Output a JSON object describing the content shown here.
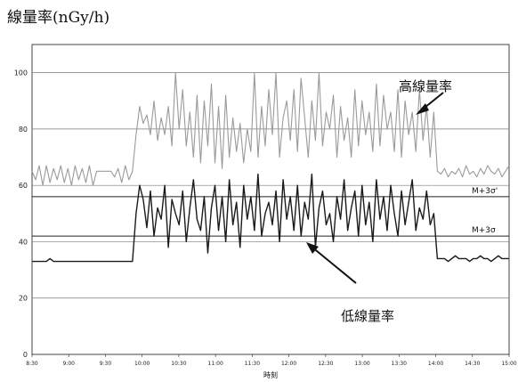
{
  "chart_data": {
    "type": "line",
    "title": "線量率(nGy/h)",
    "xlabel": "時刻",
    "ylabel": "",
    "ylim": [
      0,
      110
    ],
    "yticks": [
      0,
      20,
      40,
      60,
      80,
      100
    ],
    "grid": true,
    "x_tick_labels": [
      "8:30",
      "9:00",
      "9:30",
      "10:00",
      "10:30",
      "11:00",
      "11:30",
      "12:00",
      "12:30",
      "13:00",
      "13:30",
      "14:00",
      "14:30",
      "15:00"
    ],
    "series": [
      {
        "color": "#9a9a9a",
        "values": [
          65,
          62,
          67,
          60,
          67,
          61,
          66,
          62,
          67,
          61,
          66,
          60,
          67,
          62,
          66,
          61,
          67,
          60,
          65,
          65,
          65,
          65,
          65,
          63,
          66,
          61,
          67,
          62,
          65,
          78,
          88,
          82,
          85,
          78,
          90,
          76,
          84,
          78,
          88,
          74,
          100,
          80,
          94,
          74,
          86,
          70,
          92,
          68,
          90,
          74,
          96,
          68,
          88,
          66,
          92,
          70,
          84,
          72,
          82,
          68,
          80,
          72,
          100,
          70,
          88,
          74,
          94,
          78,
          100,
          70,
          84,
          90,
          76,
          94,
          72,
          98,
          84,
          70,
          90,
          76,
          100,
          74,
          86,
          80,
          92,
          70,
          88,
          76,
          84,
          70,
          94,
          74,
          90,
          78,
          86,
          72,
          96,
          74,
          92,
          80,
          86,
          72,
          94,
          70,
          90,
          78,
          86,
          72,
          94,
          76,
          88,
          70,
          86,
          65,
          64,
          66,
          63,
          65,
          64,
          66,
          63,
          67,
          64,
          65,
          63,
          66,
          64,
          67,
          65,
          64,
          66,
          63,
          65,
          67
        ]
      },
      {
        "color": "#1a1a1a",
        "values": [
          33,
          33,
          33,
          33,
          33,
          34,
          33,
          33,
          33,
          33,
          33,
          33,
          33,
          33,
          33,
          33,
          33,
          33,
          33,
          33,
          33,
          33,
          33,
          33,
          33,
          33,
          33,
          33,
          33,
          50,
          60,
          55,
          45,
          58,
          42,
          52,
          48,
          60,
          38,
          55,
          50,
          46,
          58,
          40,
          52,
          62,
          48,
          44,
          56,
          36,
          52,
          60,
          44,
          56,
          40,
          62,
          46,
          54,
          38,
          60,
          48,
          56,
          44,
          64,
          42,
          50,
          54,
          46,
          58,
          40,
          62,
          48,
          56,
          44,
          60,
          42,
          54,
          48,
          64,
          38,
          52,
          58,
          46,
          50,
          40,
          56,
          48,
          62,
          44,
          52,
          58,
          42,
          60,
          46,
          54,
          40,
          62,
          48,
          56,
          44,
          60,
          50,
          42,
          58,
          46,
          54,
          62,
          44,
          52,
          48,
          58,
          46,
          50,
          34,
          34,
          34,
          33,
          34,
          35,
          34,
          34,
          34,
          33,
          34,
          34,
          35,
          34,
          34,
          33,
          34,
          35,
          34,
          34,
          34
        ]
      }
    ],
    "reference_lines": [
      {
        "label": "M+3σ'",
        "value": 56
      },
      {
        "label": "M+3σ",
        "value": 42
      }
    ],
    "annotations": [
      {
        "text": "高線量率"
      },
      {
        "text": "低線量率"
      }
    ]
  }
}
